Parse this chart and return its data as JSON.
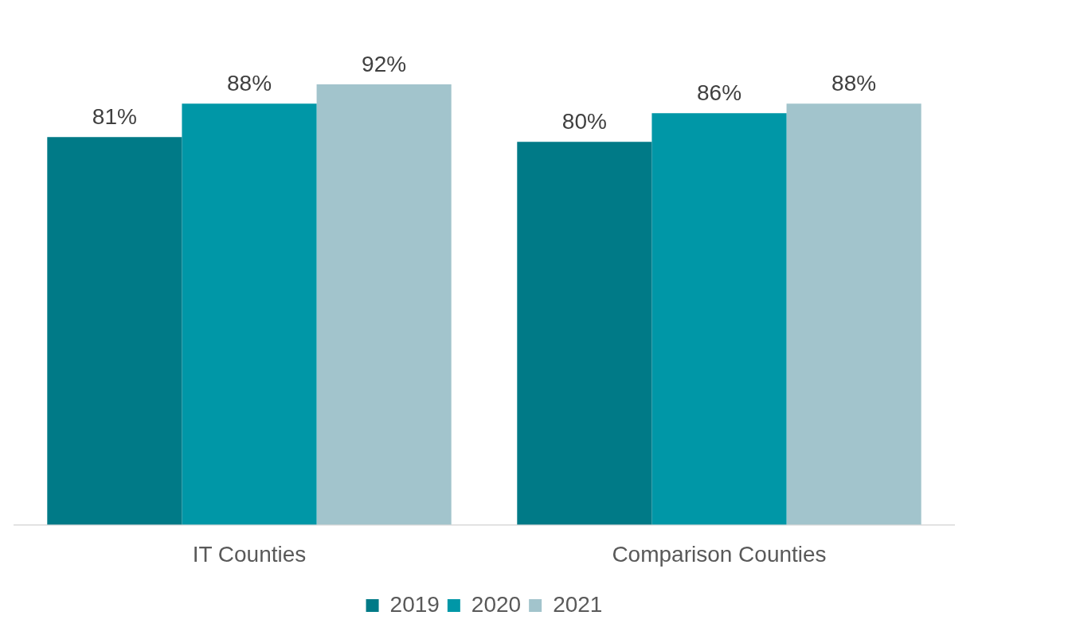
{
  "chart_data": {
    "type": "bar",
    "categories": [
      "IT Counties",
      "Comparison Counties"
    ],
    "series": [
      {
        "name": "2019",
        "color": "#007a87",
        "values": [
          81,
          80
        ],
        "value_labels": [
          "81%",
          "80%"
        ]
      },
      {
        "name": "2020",
        "color": "#0097a7",
        "values": [
          88,
          86
        ],
        "value_labels": [
          "88%",
          "86%"
        ]
      },
      {
        "name": "2021",
        "color": "#a2c4cc",
        "values": [
          92,
          88
        ],
        "value_labels": [
          "92%",
          "88%"
        ]
      }
    ],
    "tick_labels": "x",
    "grid": false,
    "legend": "bottom"
  }
}
